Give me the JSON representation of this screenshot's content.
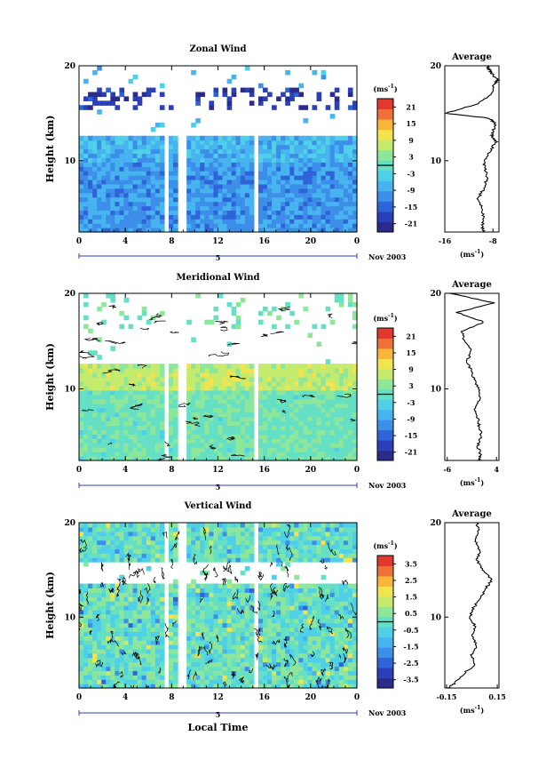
{
  "chart_data": [
    {
      "type": "heatmap",
      "title": "Zonal Wind",
      "ylabel": "Height (km)",
      "ylim": [
        2.5,
        20
      ],
      "xlim": [
        0,
        24
      ],
      "x_ticks": [
        "0",
        "4",
        "8",
        "12",
        "16",
        "20",
        "0"
      ],
      "y_ticks": [
        "20",
        "10"
      ],
      "date_marker": "5",
      "date_label": "Nov 2003",
      "colorbar": {
        "units": "(ms",
        "units_sup": "-1",
        "units_close": ")",
        "ticks": [
          "21",
          "15",
          "9",
          "3",
          "-3",
          "-9",
          "-15",
          "-21"
        ],
        "range": [
          -24,
          24
        ]
      },
      "gaps": [
        [
          7.2,
          7.6
        ],
        [
          8.7,
          9.3
        ],
        [
          15.0,
          15.5
        ]
      ],
      "average_profile": {
        "title": "Average",
        "xlabel": "(ms",
        "xlabel_sup": "-1",
        "xlabel_close": ")",
        "x_ticks": [
          "-16",
          "-8"
        ],
        "xlim": [
          -16,
          -7
        ],
        "heights": [
          2.5,
          3,
          4,
          5,
          6,
          7,
          8,
          9,
          10,
          11,
          12,
          12.5,
          13,
          14,
          14.5,
          15,
          16,
          17,
          18,
          18.5,
          19,
          19.5,
          20
        ],
        "values": [
          -9.5,
          -9.8,
          -9.5,
          -9.8,
          -10.5,
          -9.6,
          -9.0,
          -9.2,
          -9.5,
          -8.5,
          -7.5,
          -8.2,
          -8.0,
          -7.6,
          -8.8,
          -16.0,
          -10.5,
          -8.2,
          -7.8,
          -7.2,
          -8.0,
          -8.5,
          -9.0
        ]
      }
    },
    {
      "type": "heatmap",
      "title": "Meridional Wind",
      "ylabel": "Height (km)",
      "ylim": [
        2.5,
        20
      ],
      "xlim": [
        0,
        24
      ],
      "x_ticks": [
        "0",
        "4",
        "8",
        "12",
        "16",
        "20",
        "0"
      ],
      "y_ticks": [
        "20",
        "10"
      ],
      "date_marker": "5",
      "date_label": "Nov 2003",
      "colorbar": {
        "units": "(ms",
        "units_sup": "-1",
        "units_close": ")",
        "ticks": [
          "21",
          "15",
          "9",
          "3",
          "-3",
          "-9",
          "-15",
          "-21"
        ],
        "range": [
          -24,
          24
        ]
      },
      "gaps": [
        [
          7.2,
          7.6
        ],
        [
          8.7,
          9.3
        ],
        [
          15.0,
          15.5
        ]
      ],
      "average_profile": {
        "title": "Average",
        "xlabel": "(ms",
        "xlabel_sup": "-1",
        "xlabel_close": ")",
        "x_ticks": [
          "-6",
          "4"
        ],
        "xlim": [
          -6.5,
          4.5
        ],
        "heights": [
          2.5,
          3,
          4,
          5,
          6,
          7,
          8,
          9,
          10,
          11,
          12,
          13,
          14,
          15,
          16,
          17,
          18,
          19,
          20
        ],
        "values": [
          0.5,
          0.8,
          0.2,
          1.0,
          0.5,
          0.2,
          -0.5,
          0.8,
          0.3,
          -0.5,
          -1.2,
          -2.0,
          -1.0,
          -2.5,
          -3.0,
          1.5,
          -4.0,
          3.5,
          -5.5
        ]
      }
    },
    {
      "type": "heatmap",
      "title": "Vertical Wind",
      "ylabel": "Height (km)",
      "xlabel": "Local Time",
      "ylim": [
        2.5,
        20
      ],
      "xlim": [
        0,
        24
      ],
      "x_ticks": [
        "0",
        "4",
        "8",
        "12",
        "16",
        "20",
        "0"
      ],
      "y_ticks": [
        "20",
        "10"
      ],
      "date_marker": "5",
      "date_label": "Nov 2003",
      "colorbar": {
        "units": "(ms",
        "units_sup": "-1",
        "units_close": ")",
        "ticks": [
          "3.5",
          "2.5",
          "1.5",
          "0.5",
          "-0.5",
          "-1.5",
          "-2.5",
          "-3.5"
        ],
        "range": [
          -4,
          4
        ]
      },
      "gaps": [
        [
          7.2,
          7.6
        ],
        [
          8.7,
          9.3
        ],
        [
          15.0,
          15.5
        ]
      ],
      "average_profile": {
        "title": "Average",
        "xlabel": "(ms",
        "xlabel_sup": "-1",
        "xlabel_close": ")",
        "x_ticks": [
          "-0.15",
          "0.15"
        ],
        "xlim": [
          -0.16,
          0.16
        ],
        "heights": [
          2.5,
          3,
          4,
          5,
          6,
          7,
          8,
          9,
          10,
          11,
          12,
          13,
          14,
          15,
          16,
          17,
          18,
          19,
          20
        ],
        "values": [
          -0.14,
          -0.1,
          -0.05,
          0.02,
          0.0,
          0.03,
          0.0,
          0.02,
          -0.01,
          0.01,
          0.05,
          0.08,
          0.12,
          0.06,
          0.03,
          0.05,
          0.02,
          0.04,
          0.03
        ]
      }
    }
  ],
  "colors": {
    "scale": [
      "#2b2b8c",
      "#2a3fb8",
      "#2f63d8",
      "#3c8ee8",
      "#47b3ef",
      "#4fd0e8",
      "#66e0c4",
      "#8ee69a",
      "#c4ea6e",
      "#f2e44e",
      "#f7b63a",
      "#f0703a",
      "#e03a2e"
    ]
  }
}
